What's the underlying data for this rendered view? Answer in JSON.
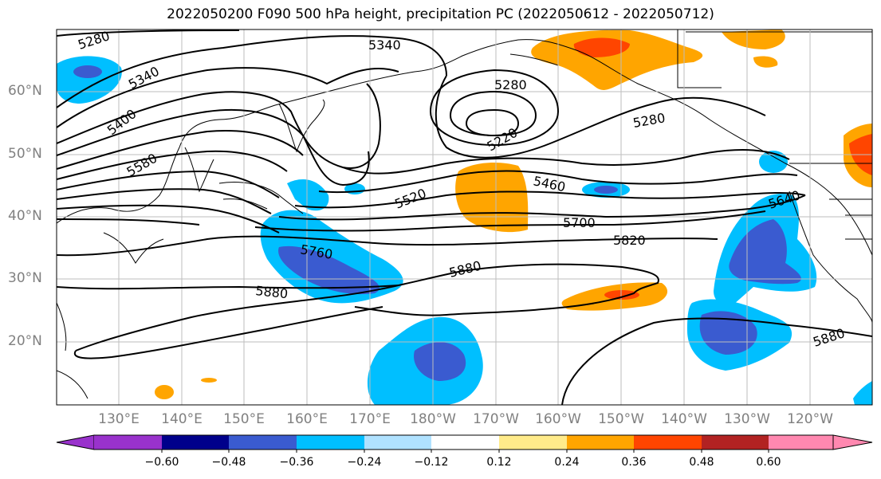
{
  "title": "2022050200 F090 500 hPa height, precipitation PC (2022050612 - 2022050712)",
  "lat_labels": [
    "60°N",
    "50°N",
    "40°N",
    "30°N",
    "20°N"
  ],
  "lon_labels": [
    "130°E",
    "140°E",
    "150°E",
    "160°E",
    "170°E",
    "180°W",
    "170°W",
    "160°W",
    "150°W",
    "140°W",
    "130°W",
    "120°W"
  ],
  "contour_labels": [
    "5280",
    "5340",
    "5400",
    "5580",
    "5340",
    "5280",
    "5280",
    "5220",
    "5520",
    "5460",
    "5700",
    "5820",
    "5760",
    "5880",
    "5880",
    "5880",
    "5640"
  ],
  "colorbar": {
    "ticks": [
      "−0.60",
      "−0.48",
      "−0.36",
      "−0.24",
      "−0.12",
      "0.12",
      "0.24",
      "0.36",
      "0.48",
      "0.60"
    ],
    "colors": [
      "#9932cc",
      "#00008b",
      "#3a5bd0",
      "#00bfff",
      "#b0e2ff",
      "#ffffff",
      "#ffeb8a",
      "#ffa500",
      "#ff4500",
      "#b22222",
      "#ff88b0"
    ]
  },
  "shading_colors": {
    "light_blue": "#b0e2ff",
    "blue": "#00bfff",
    "dark_blue": "#3a5bd0",
    "yellow": "#ffeb8a",
    "orange": "#ffa500",
    "red_orange": "#ff4500"
  }
}
